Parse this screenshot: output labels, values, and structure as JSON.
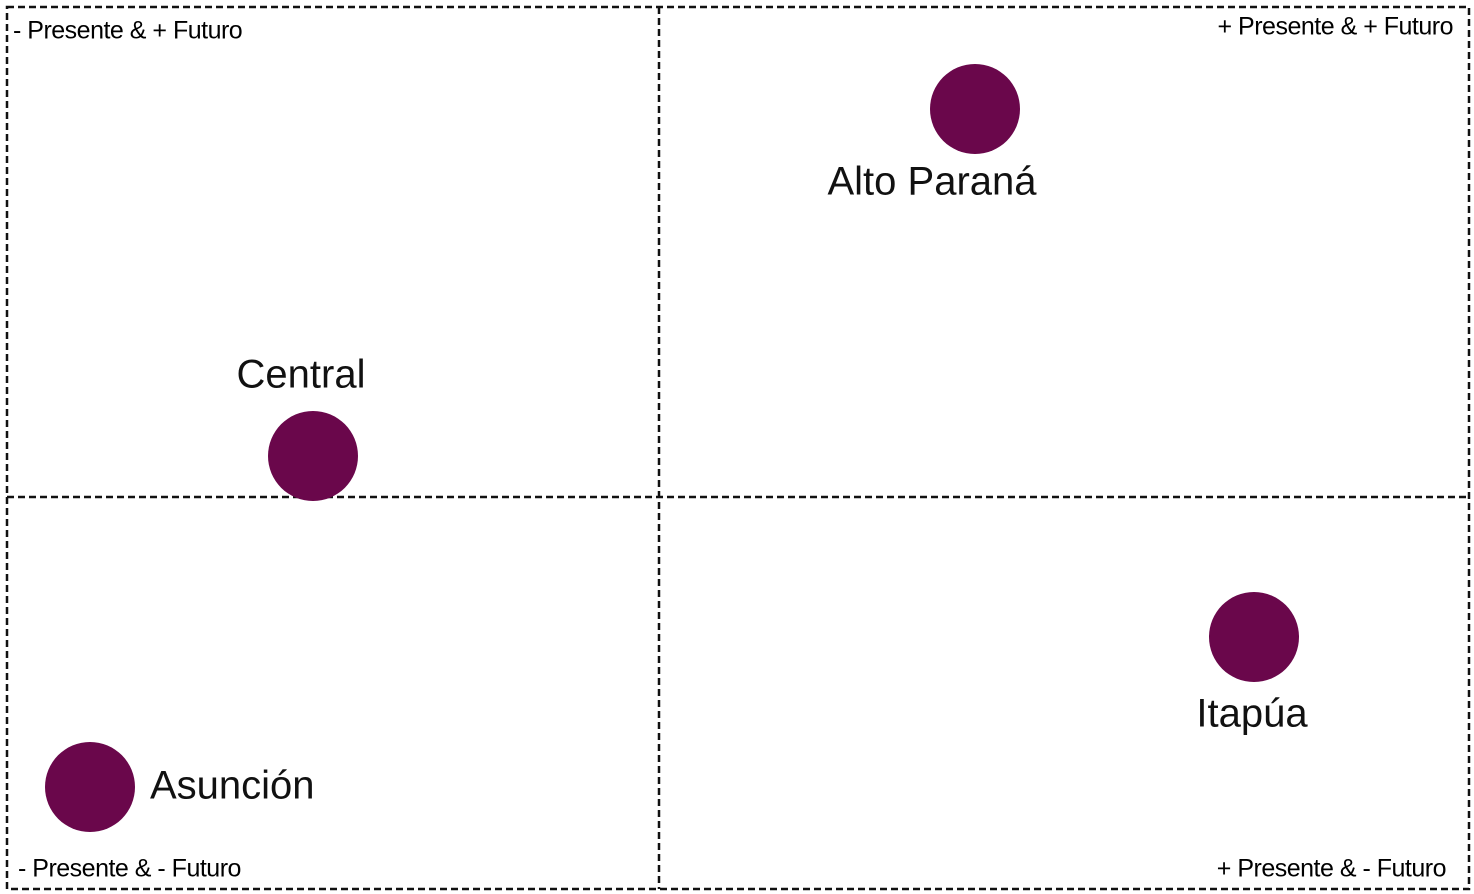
{
  "quadrants": {
    "top_left": "- Presente & + Futuro",
    "top_right": "+ Presente & + Futuro",
    "bottom_left": "- Presente & - Futuro",
    "bottom_right": "+ Presente & - Futuro"
  },
  "nodes": [
    {
      "label": "Alto Paraná"
    },
    {
      "label": "Central"
    },
    {
      "label": "Itapúa"
    },
    {
      "label": "Asunción"
    }
  ]
}
